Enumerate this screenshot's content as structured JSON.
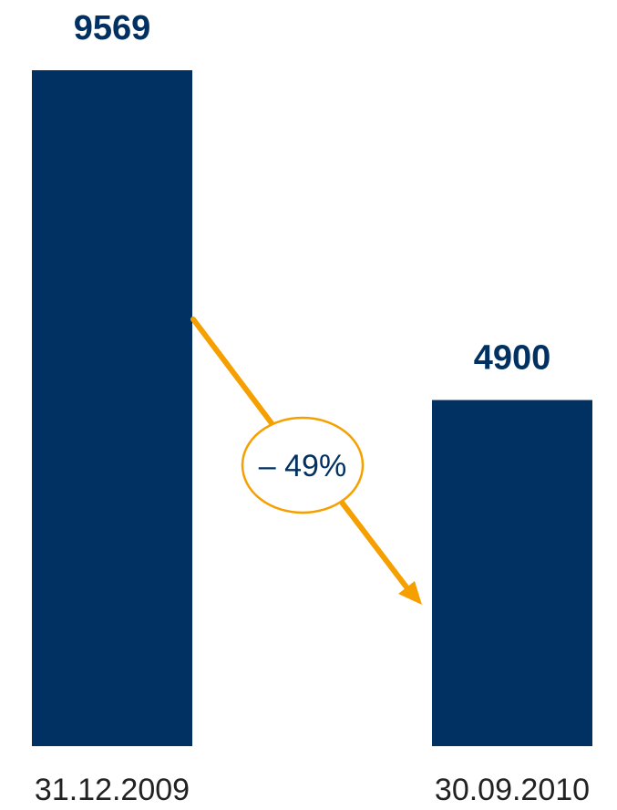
{
  "chart_data": {
    "type": "bar",
    "categories": [
      "31.12.2009",
      "30.09.2010"
    ],
    "values": [
      9569,
      4900
    ],
    "data_labels": [
      "9569",
      "4900"
    ],
    "title": "",
    "xlabel": "",
    "ylabel": "",
    "ylim": [
      0,
      10000
    ],
    "grid": false,
    "annotation": {
      "text": "– 49%",
      "type": "decrease-arrow"
    }
  },
  "colors": {
    "bar": "#003162",
    "arrow": "#f5a000",
    "label": "#003162",
    "category_text": "#222222"
  }
}
